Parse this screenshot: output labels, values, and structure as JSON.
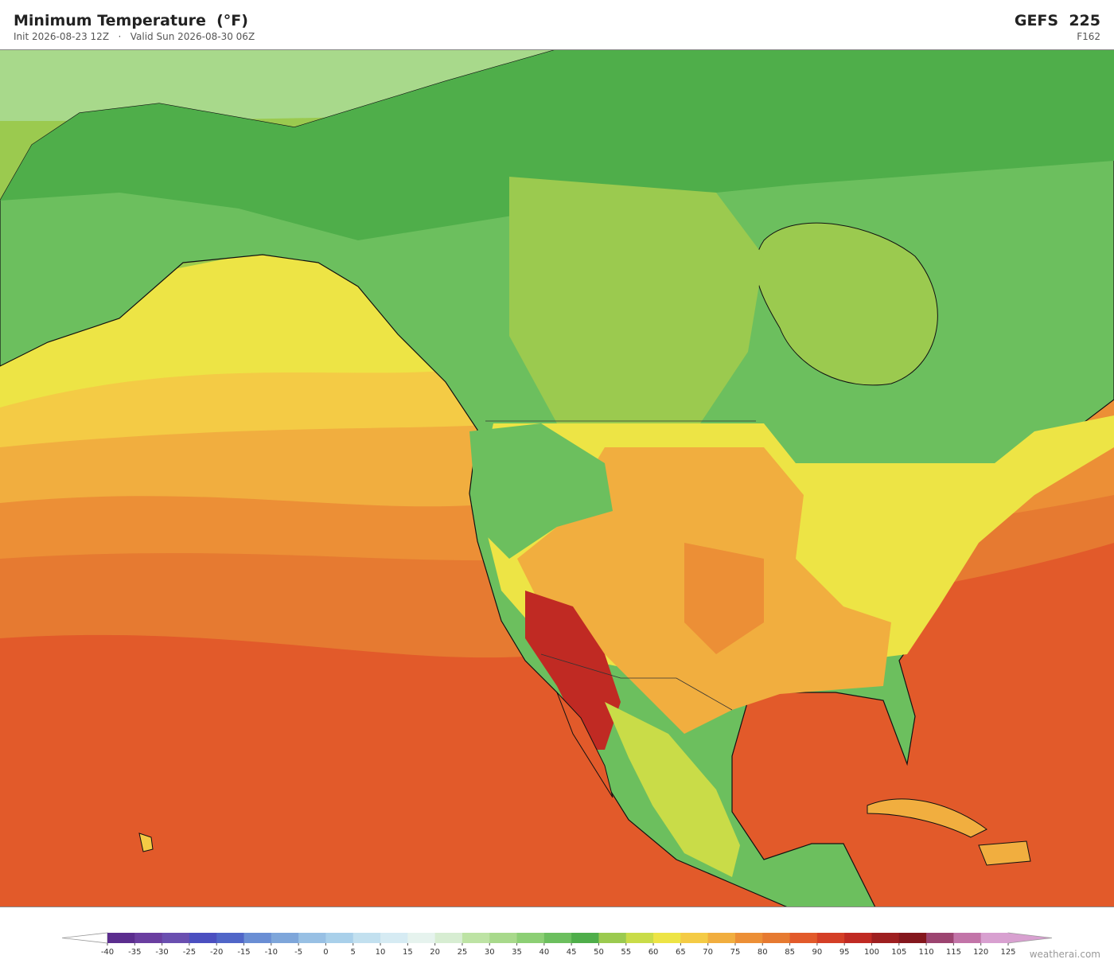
{
  "header": {
    "title": "Minimum Temperature  (°F)",
    "subtitle": "Init 2026-08-23 12Z   ·   Valid Sun 2026-08-30 06Z",
    "model": "GEFS  225",
    "forecast_hour": "F162"
  },
  "colorbar": {
    "ticks": [
      -40,
      -35,
      -30,
      -25,
      -20,
      -15,
      -10,
      -5,
      0,
      5,
      10,
      15,
      20,
      25,
      30,
      35,
      40,
      45,
      50,
      55,
      60,
      65,
      70,
      75,
      80,
      85,
      90,
      95,
      100,
      105,
      110,
      115,
      120,
      125
    ],
    "colors": [
      "#5b2d8e",
      "#6a3ea0",
      "#6a4fb0",
      "#4b4fc0",
      "#5066c8",
      "#6a8ed4",
      "#7ea6da",
      "#98c0e4",
      "#a9d0ea",
      "#c2e0ef",
      "#d6ebf3",
      "#e6f3ee",
      "#d7edd2",
      "#bde3a4",
      "#a8d98b",
      "#8ccf74",
      "#6cbf5e",
      "#4fae4a",
      "#9bca4f",
      "#c9dc48",
      "#ede445",
      "#f4cb45",
      "#f1ae3f",
      "#ec8f36",
      "#e67a31",
      "#e25a2a",
      "#d43f26",
      "#c02a23",
      "#9e1f20",
      "#84171d",
      "#9c4470",
      "#c274a8",
      "#d8a0d0"
    ],
    "under_color": "#ffffff",
    "over_color": "#d8a0d0"
  },
  "watermark": "weatherai.com"
}
